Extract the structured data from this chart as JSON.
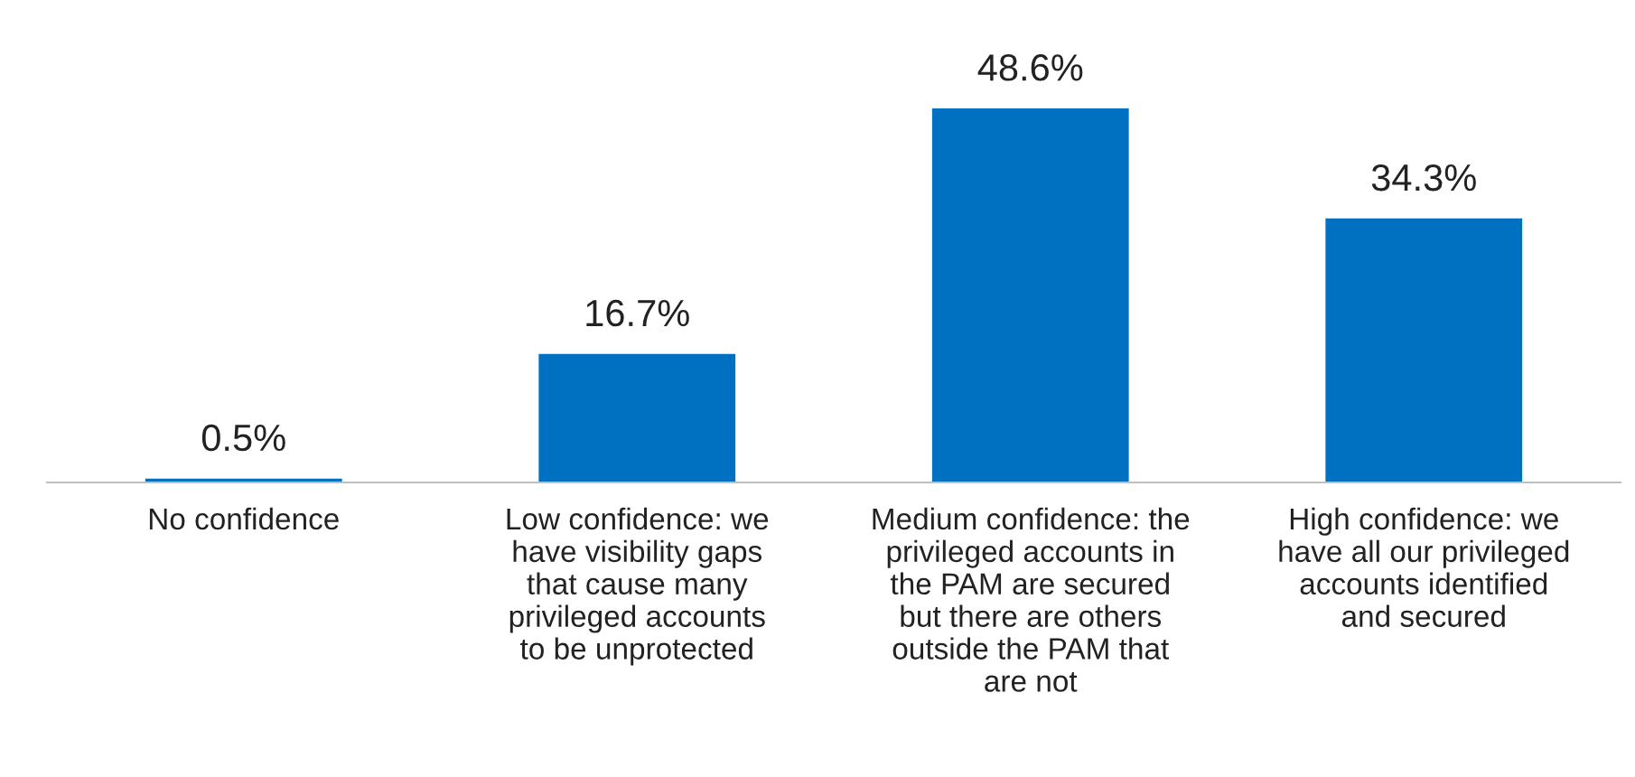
{
  "chart_data": {
    "type": "bar",
    "categories": [
      "No confidence",
      "Low confidence: we\nhave visibility gaps\nthat cause many\nprivileged accounts\nto be unprotected",
      "Medium confidence: the\nprivileged accounts in\nthe PAM are secured\nbut there are others\noutside the PAM that\nare not",
      "High confidence: we\nhave all our privileged\naccounts identified\nand secured"
    ],
    "values": [
      0.5,
      16.7,
      48.6,
      34.3
    ],
    "color": "#0070c0",
    "value_labels": [
      "0.5%",
      "16.7%",
      "48.6%",
      "34.3%"
    ],
    "grid": false,
    "legend": false
  }
}
